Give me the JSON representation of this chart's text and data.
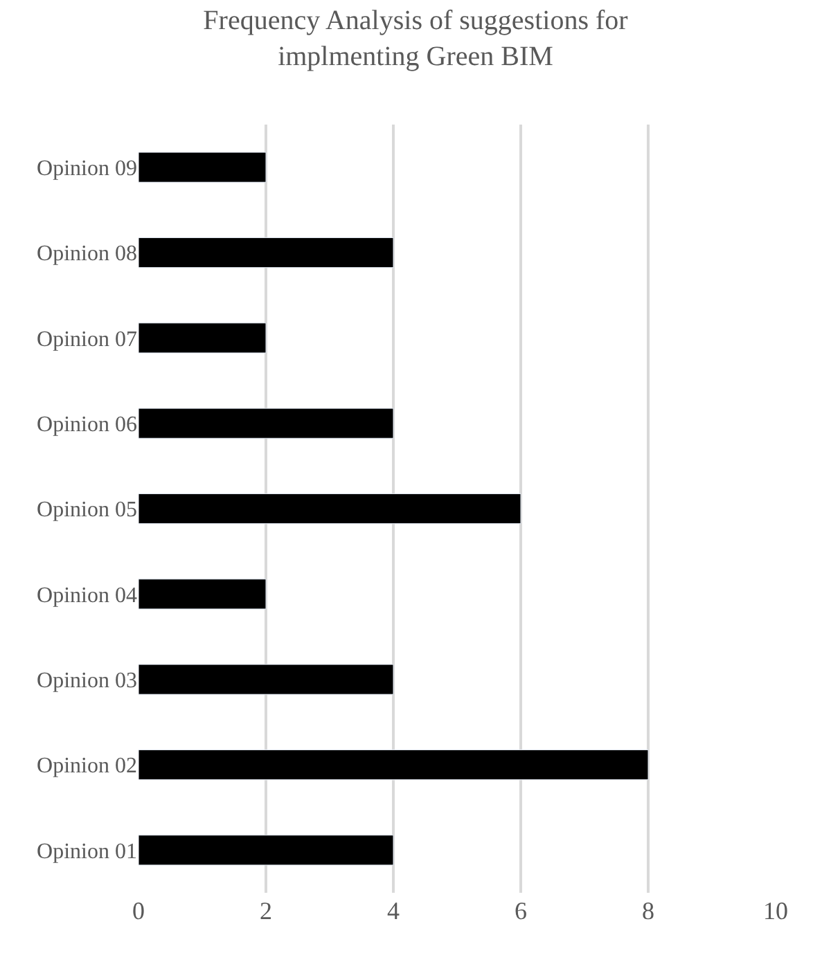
{
  "chart_data": {
    "type": "bar",
    "orientation": "horizontal",
    "title": "Frequency Analysis of suggestions for implmenting Green BIM",
    "categories": [
      "Opinion 09",
      "Opinion 08",
      "Opinion 07",
      "Opinion 06",
      "Opinion 05",
      "Opinion 04",
      "Opinion 03",
      "Opinion 02",
      "Opinion 01"
    ],
    "values": [
      2,
      4,
      2,
      4,
      6,
      2,
      4,
      8,
      4
    ],
    "color": "#000000",
    "xlim": [
      0,
      10
    ],
    "xticks": [
      0,
      2,
      4,
      6,
      8,
      10
    ],
    "grid": "x"
  }
}
